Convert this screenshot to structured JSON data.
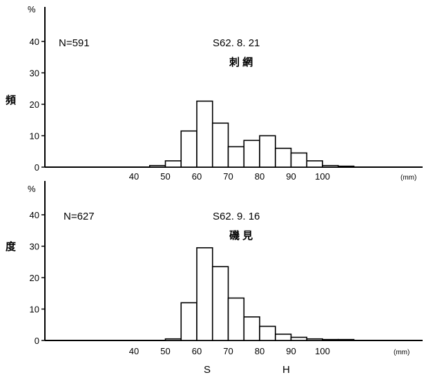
{
  "figure": {
    "ylabel_chars": [
      "頻",
      "度"
    ],
    "xlabel_chars": [
      "S",
      "H"
    ]
  },
  "chart_data": [
    {
      "type": "bar",
      "n_label": "N=591",
      "date_label": "S62. 8. 21",
      "location_label": "刺 網",
      "y_unit": "%",
      "x_unit": "(mm)",
      "ylim": [
        0,
        40
      ],
      "yticks": [
        "0",
        "10",
        "20",
        "30",
        "40"
      ],
      "xticks": [
        "40",
        "50",
        "60",
        "70",
        "80",
        "90",
        "100"
      ],
      "bin_width": 5,
      "bins": [
        {
          "x": 45,
          "y": 0.5
        },
        {
          "x": 50,
          "y": 2
        },
        {
          "x": 55,
          "y": 11.5
        },
        {
          "x": 60,
          "y": 21
        },
        {
          "x": 65,
          "y": 14
        },
        {
          "x": 70,
          "y": 6.5
        },
        {
          "x": 75,
          "y": 8.5
        },
        {
          "x": 80,
          "y": 10
        },
        {
          "x": 85,
          "y": 6
        },
        {
          "x": 90,
          "y": 4.5
        },
        {
          "x": 95,
          "y": 2
        },
        {
          "x": 100,
          "y": 0.5
        },
        {
          "x": 105,
          "y": 0.3
        }
      ]
    },
    {
      "type": "bar",
      "n_label": "N=627",
      "date_label": "S62. 9. 16",
      "location_label": "磯 見",
      "y_unit": "%",
      "x_unit": "(mm)",
      "ylim": [
        0,
        40
      ],
      "yticks": [
        "0",
        "10",
        "20",
        "30",
        "40"
      ],
      "xticks": [
        "40",
        "50",
        "60",
        "70",
        "80",
        "90",
        "100"
      ],
      "bin_width": 5,
      "bins": [
        {
          "x": 50,
          "y": 0.5
        },
        {
          "x": 55,
          "y": 12
        },
        {
          "x": 60,
          "y": 29.5
        },
        {
          "x": 65,
          "y": 23.5
        },
        {
          "x": 70,
          "y": 13.5
        },
        {
          "x": 75,
          "y": 7.5
        },
        {
          "x": 80,
          "y": 4.5
        },
        {
          "x": 85,
          "y": 2
        },
        {
          "x": 90,
          "y": 1
        },
        {
          "x": 95,
          "y": 0.5
        },
        {
          "x": 100,
          "y": 0.3
        },
        {
          "x": 105,
          "y": 0.3
        }
      ]
    }
  ]
}
